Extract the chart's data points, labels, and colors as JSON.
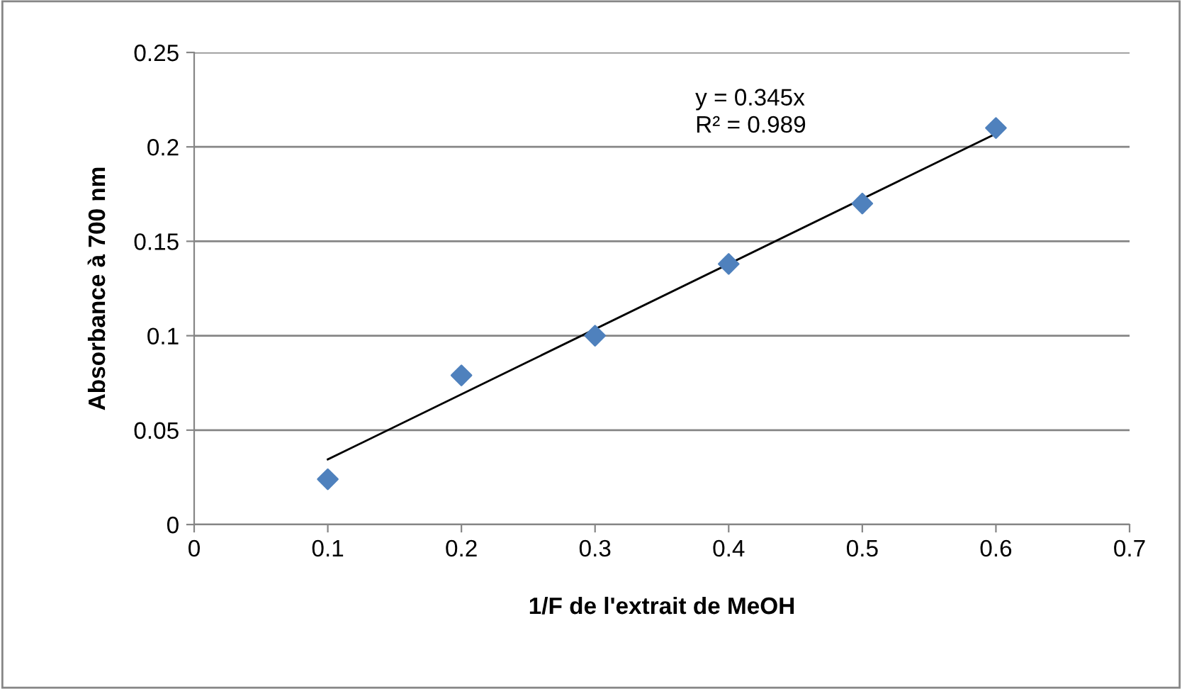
{
  "chart_data": {
    "type": "scatter",
    "xlabel": "1/F de l'extrait de MeOH",
    "ylabel": "Absorbance à 700 nm",
    "x": [
      0.1,
      0.2,
      0.3,
      0.4,
      0.5,
      0.6
    ],
    "series": [
      {
        "color": "#4f81bd",
        "values": [
          0.024,
          0.079,
          0.1,
          0.138,
          0.17,
          0.21
        ],
        "marker": "diamond"
      },
      {
        "type": "line",
        "color": "#000000",
        "x": [
          0.1,
          0.6
        ],
        "values": [
          0.0345,
          0.207
        ],
        "marker": "none"
      }
    ],
    "annotations": [
      "y = 0.345x\nR² = 0.989"
    ],
    "xlim": [
      0,
      0.7
    ],
    "xticks": [
      0,
      0.1,
      0.2,
      0.3,
      0.4,
      0.5,
      0.6,
      0.7
    ],
    "ylim": [
      0,
      0.25
    ],
    "yticks": [
      0,
      0.05,
      0.1,
      0.15,
      0.2,
      0.25
    ],
    "grid": "y",
    "legend": false
  }
}
